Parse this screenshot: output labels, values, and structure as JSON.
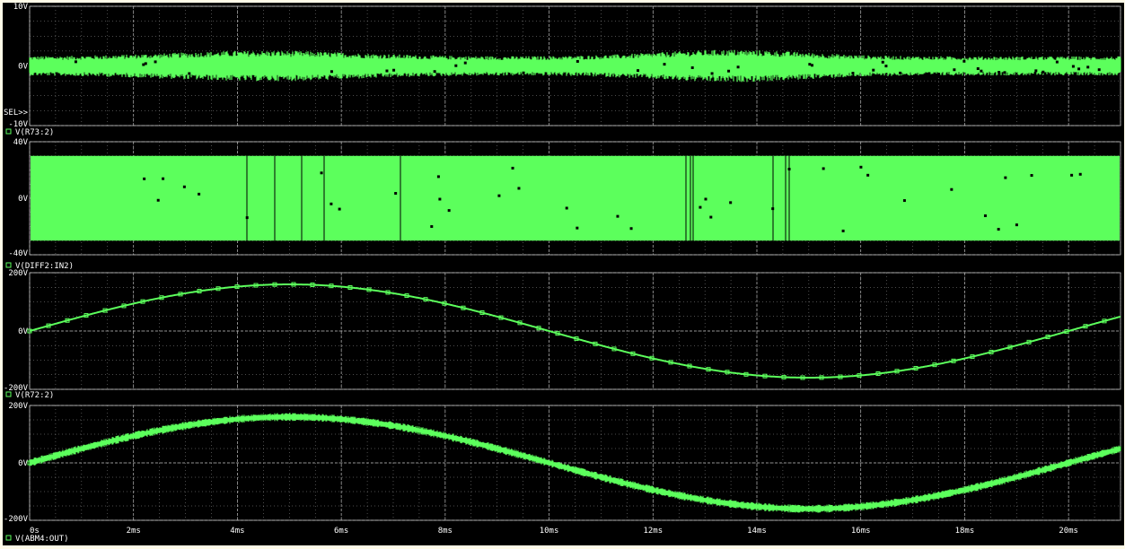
{
  "chart_data": {
    "type": "line",
    "grid": true,
    "colors": {
      "background": "#000000",
      "trace": "#5cff5c",
      "grid": "#bdbdbd",
      "text": "#ffffff",
      "outer": "#fffbe8"
    },
    "x": {
      "range": [
        0,
        21
      ],
      "unit": "ms",
      "ticks": [
        0,
        2,
        4,
        6,
        8,
        10,
        12,
        14,
        16,
        18,
        20
      ],
      "tick_labels": [
        "0s",
        "2ms",
        "4ms",
        "6ms",
        "8ms",
        "10ms",
        "12ms",
        "14ms",
        "16ms",
        "18ms",
        "20ms"
      ]
    },
    "plots": [
      {
        "series_name": "V(R73:2)",
        "ylim": [
          -10,
          10
        ],
        "y_tick_labels": [
          "10V",
          "0V",
          "-10V"
        ],
        "trace": "noise",
        "amplitude": 1.6,
        "marker_label": "SEL>>"
      },
      {
        "series_name": "V(DIFF2:IN2)",
        "ylim": [
          -40,
          40
        ],
        "y_tick_labels": [
          "40V",
          "0V",
          "-40V"
        ],
        "trace": "square",
        "amplitude": 30
      },
      {
        "series_name": "V(R72:2)",
        "ylim": [
          -200,
          200
        ],
        "y_tick_labels": [
          "200V",
          "0V",
          "-200V"
        ],
        "trace": "sine",
        "amplitude": 160,
        "period_ms": 20,
        "ripple": 0
      },
      {
        "series_name": "V(ABM4:OUT)",
        "ylim": [
          -200,
          200
        ],
        "y_tick_labels": [
          "200V",
          "0V",
          "-200V"
        ],
        "trace": "sine",
        "amplitude": 160,
        "period_ms": 20,
        "ripple": 14
      }
    ]
  }
}
